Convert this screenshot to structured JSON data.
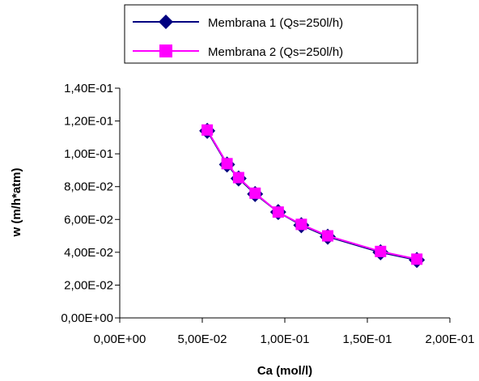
{
  "chart_data": {
    "type": "line",
    "xlabel": "Ca (mol/l)",
    "ylabel": "w (m/h*atm)",
    "xlim": [
      0,
      0.2
    ],
    "ylim": [
      0,
      0.14
    ],
    "x_ticks": [
      "0,00E+00",
      "5,00E-02",
      "1,00E-01",
      "1,50E-01",
      "2,00E-01"
    ],
    "y_ticks": [
      "0,00E+00",
      "2,00E-02",
      "4,00E-02",
      "6,00E-02",
      "8,00E-02",
      "1,00E-01",
      "1,20E-01",
      "1,40E-01"
    ],
    "grid": false,
    "legend_position": "top",
    "series": [
      {
        "name": "Membrana 1 (Qs=250l/h)",
        "color": "#000080",
        "marker": "diamond",
        "x": [
          0.053,
          0.065,
          0.072,
          0.082,
          0.096,
          0.11,
          0.126,
          0.158,
          0.18
        ],
        "y": [
          0.114,
          0.0935,
          0.085,
          0.0755,
          0.0645,
          0.0565,
          0.0495,
          0.04,
          0.0353
        ]
      },
      {
        "name": "Membrana 2 (Qs=250l/h)",
        "color": "#FF00FF",
        "marker": "square",
        "x": [
          0.053,
          0.065,
          0.072,
          0.082,
          0.096,
          0.11,
          0.126,
          0.158,
          0.18
        ],
        "y": [
          0.1145,
          0.094,
          0.0855,
          0.076,
          0.0645,
          0.057,
          0.05,
          0.0405,
          0.0358
        ]
      }
    ]
  }
}
